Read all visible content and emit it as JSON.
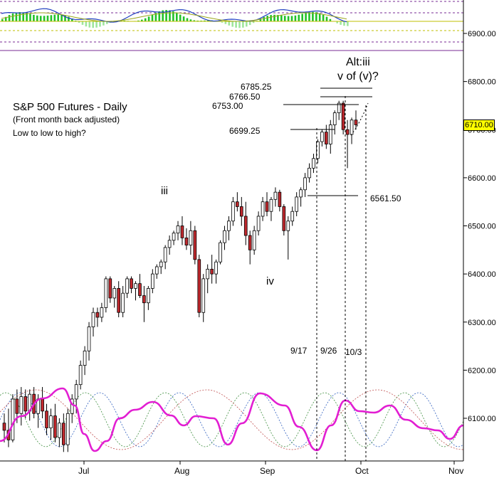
{
  "colors": {
    "up_candle": "#ffffff",
    "down_candle": "#c0282d",
    "cycle_composite": "#e21ed2",
    "indicator_line_fast": "#1f3fbf",
    "indicator_line_slow": "#9aa51b",
    "histogram_up": "#22c22a",
    "histogram_light": "#9fe69d",
    "dashed_purple": "#7a2b95",
    "badge_bg": "#ffff00"
  },
  "title": {
    "line1": "S&P 500 Futures - Daily",
    "line2": "(Front month back adjusted)",
    "line3": "Low to low to high?"
  },
  "wave_labels": {
    "iii": "iii",
    "iv": "iv",
    "alt_top": "Alt:iii",
    "alt_bottom": "v of (v)?"
  },
  "levels": {
    "l6785": "6785.25",
    "l6766": "6766.50",
    "l6753": "6753.00",
    "l6699": "6699.25",
    "l6561": "6561.50"
  },
  "date_markers": {
    "d917": "9/17",
    "d926": "9/26",
    "d103": "10/3"
  },
  "current_price": "6710.00",
  "chart_data": {
    "type": "candlestick",
    "instrument": "S&P 500 Futures - Daily",
    "x_tick_labels": [
      "Jul",
      "Aug",
      "Sep",
      "Oct",
      "Nov"
    ],
    "y_tick_labels": [
      "6100.00",
      "6200.00",
      "6300.00",
      "6400.00",
      "6500.00",
      "6600.00",
      "6700.00",
      "6800.00",
      "6900.00"
    ],
    "ylim": [
      6020,
      6980
    ],
    "candles_ohlc": [
      [
        6090,
        6110,
        6050,
        6075
      ],
      [
        6075,
        6120,
        6040,
        6055
      ],
      [
        6055,
        6150,
        6050,
        6140
      ],
      [
        6140,
        6160,
        6090,
        6110
      ],
      [
        6110,
        6165,
        6085,
        6145
      ],
      [
        6145,
        6160,
        6100,
        6115
      ],
      [
        6115,
        6160,
        6095,
        6150
      ],
      [
        6150,
        6165,
        6100,
        6110
      ],
      [
        6110,
        6150,
        6080,
        6140
      ],
      [
        6140,
        6165,
        6100,
        6115
      ],
      [
        6115,
        6130,
        6065,
        6080
      ],
      [
        6080,
        6120,
        6055,
        6105
      ],
      [
        6105,
        6130,
        6050,
        6060
      ],
      [
        6060,
        6100,
        6040,
        6090
      ],
      [
        6090,
        6110,
        6030,
        6045
      ],
      [
        6045,
        6120,
        6030,
        6110
      ],
      [
        6110,
        6150,
        6090,
        6140
      ],
      [
        6140,
        6180,
        6110,
        6170
      ],
      [
        6170,
        6220,
        6160,
        6210
      ],
      [
        6210,
        6250,
        6190,
        6240
      ],
      [
        6240,
        6300,
        6220,
        6290
      ],
      [
        6290,
        6330,
        6270,
        6320
      ],
      [
        6320,
        6330,
        6290,
        6310
      ],
      [
        6310,
        6340,
        6300,
        6330
      ],
      [
        6330,
        6395,
        6320,
        6390
      ],
      [
        6390,
        6395,
        6340,
        6350
      ],
      [
        6350,
        6375,
        6330,
        6370
      ],
      [
        6370,
        6385,
        6310,
        6320
      ],
      [
        6320,
        6375,
        6310,
        6360
      ],
      [
        6360,
        6395,
        6350,
        6390
      ],
      [
        6390,
        6395,
        6360,
        6370
      ],
      [
        6370,
        6385,
        6345,
        6380
      ],
      [
        6380,
        6400,
        6350,
        6355
      ],
      [
        6355,
        6375,
        6300,
        6340
      ],
      [
        6340,
        6375,
        6325,
        6370
      ],
      [
        6370,
        6410,
        6360,
        6400
      ],
      [
        6400,
        6420,
        6390,
        6415
      ],
      [
        6415,
        6430,
        6400,
        6425
      ],
      [
        6425,
        6460,
        6410,
        6455
      ],
      [
        6455,
        6480,
        6440,
        6470
      ],
      [
        6470,
        6490,
        6460,
        6485
      ],
      [
        6485,
        6510,
        6470,
        6500
      ],
      [
        6500,
        6520,
        6460,
        6475
      ],
      [
        6475,
        6495,
        6450,
        6460
      ],
      [
        6460,
        6510,
        6440,
        6490
      ],
      [
        6490,
        6500,
        6420,
        6430
      ],
      [
        6430,
        6440,
        6310,
        6320
      ],
      [
        6320,
        6400,
        6300,
        6390
      ],
      [
        6390,
        6420,
        6360,
        6410
      ],
      [
        6410,
        6440,
        6380,
        6400
      ],
      [
        6400,
        6430,
        6380,
        6425
      ],
      [
        6425,
        6470,
        6420,
        6465
      ],
      [
        6465,
        6500,
        6450,
        6490
      ],
      [
        6490,
        6520,
        6470,
        6510
      ],
      [
        6510,
        6560,
        6500,
        6550
      ],
      [
        6550,
        6570,
        6530,
        6540
      ],
      [
        6540,
        6560,
        6500,
        6520
      ],
      [
        6520,
        6550,
        6460,
        6480
      ],
      [
        6480,
        6490,
        6420,
        6450
      ],
      [
        6450,
        6500,
        6440,
        6490
      ],
      [
        6490,
        6530,
        6480,
        6520
      ],
      [
        6520,
        6560,
        6510,
        6550
      ],
      [
        6550,
        6570,
        6520,
        6530
      ],
      [
        6530,
        6560,
        6510,
        6555
      ],
      [
        6555,
        6580,
        6540,
        6570
      ],
      [
        6570,
        6575,
        6530,
        6540
      ],
      [
        6540,
        6545,
        6480,
        6490
      ],
      [
        6490,
        6520,
        6430,
        6510
      ],
      [
        6510,
        6540,
        6500,
        6530
      ],
      [
        6530,
        6570,
        6520,
        6560
      ],
      [
        6560,
        6580,
        6540,
        6575
      ],
      [
        6575,
        6610,
        6560,
        6600
      ],
      [
        6600,
        6630,
        6590,
        6620
      ],
      [
        6620,
        6650,
        6610,
        6640
      ],
      [
        6640,
        6680,
        6630,
        6675
      ],
      [
        6675,
        6700,
        6665,
        6695
      ],
      [
        6695,
        6710,
        6660,
        6670
      ],
      [
        6670,
        6720,
        6650,
        6710
      ],
      [
        6710,
        6740,
        6690,
        6735
      ],
      [
        6735,
        6760,
        6720,
        6755
      ],
      [
        6755,
        6760,
        6690,
        6700
      ],
      [
        6700,
        6720,
        6620,
        6690
      ],
      [
        6690,
        6725,
        6670,
        6720
      ],
      [
        6720,
        6740,
        6700,
        6710
      ]
    ]
  }
}
